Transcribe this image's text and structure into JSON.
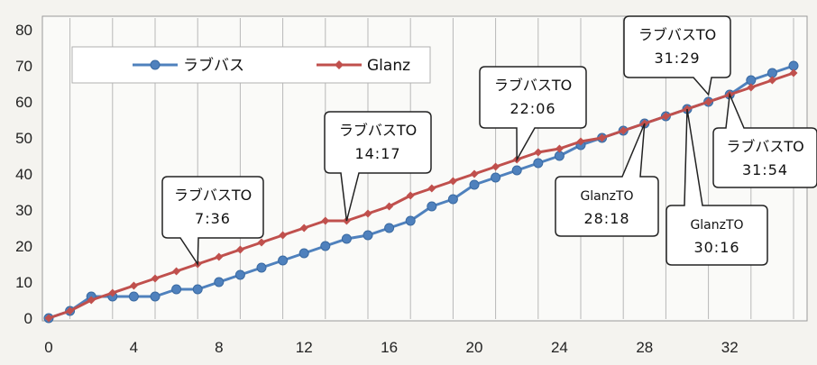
{
  "chart_data": {
    "type": "line",
    "title": "",
    "xlabel": "",
    "ylabel": "",
    "xlim": [
      0,
      35
    ],
    "ylim": [
      0,
      80
    ],
    "x_ticks": [
      "0",
      "4",
      "8",
      "12",
      "16",
      "20",
      "24",
      "28",
      "32"
    ],
    "y_ticks": [
      "0",
      "10",
      "20",
      "30",
      "40",
      "50",
      "60",
      "70",
      "80"
    ],
    "grid": "vertical",
    "legend_position": "top-left",
    "series": [
      {
        "name": "ラブバス",
        "color": "#4f81bd",
        "marker": "circle",
        "x": [
          0,
          1,
          2,
          3,
          4,
          5,
          6,
          7,
          8,
          9,
          10,
          11,
          12,
          13,
          14,
          15,
          16,
          17,
          18,
          19,
          20,
          21,
          22,
          23,
          24,
          25,
          26,
          27,
          28,
          29,
          30,
          31,
          32,
          33,
          34,
          35
        ],
        "y": [
          0,
          2,
          6,
          6,
          6,
          6,
          8,
          8,
          10,
          12,
          14,
          16,
          18,
          20,
          22,
          23,
          25,
          27,
          31,
          33,
          37,
          39,
          41,
          43,
          45,
          48,
          50,
          52,
          54,
          56,
          58,
          60,
          62,
          66,
          68,
          70
        ]
      },
      {
        "name": "Glanz",
        "color": "#c0504d",
        "marker": "diamond",
        "x": [
          0,
          1,
          2,
          3,
          4,
          5,
          6,
          7,
          8,
          9,
          10,
          11,
          12,
          13,
          14,
          15,
          16,
          17,
          18,
          19,
          20,
          21,
          22,
          23,
          24,
          25,
          26,
          27,
          28,
          29,
          30,
          31,
          32,
          33,
          34,
          35
        ],
        "y": [
          0,
          2,
          5,
          7,
          9,
          11,
          13,
          15,
          17,
          19,
          21,
          23,
          25,
          27,
          27,
          29,
          31,
          34,
          36,
          38,
          40,
          42,
          44,
          46,
          47,
          49,
          50,
          52,
          54,
          56,
          58,
          60,
          62,
          64,
          66,
          68
        ]
      }
    ],
    "annotations": [
      {
        "line1": "ラブバスTO",
        "line2": "7:36",
        "x": 7,
        "y": 15
      },
      {
        "line1": "ラブバスTO",
        "line2": "14:17",
        "x": 14,
        "y": 27
      },
      {
        "line1": "ラブバスTO",
        "line2": "22:06",
        "x": 22,
        "y": 44
      },
      {
        "line1": "ラブバスTO",
        "line2": "31:29",
        "x": 31,
        "y": 62
      },
      {
        "line1": "ラブバスTO",
        "line2": "31:54",
        "x": 32,
        "y": 62
      },
      {
        "line1": "GlanzTO",
        "line2": "28:18",
        "x": 28,
        "y": 54
      },
      {
        "line1": "GlanzTO",
        "line2": "30:16",
        "x": 30,
        "y": 58
      }
    ]
  }
}
